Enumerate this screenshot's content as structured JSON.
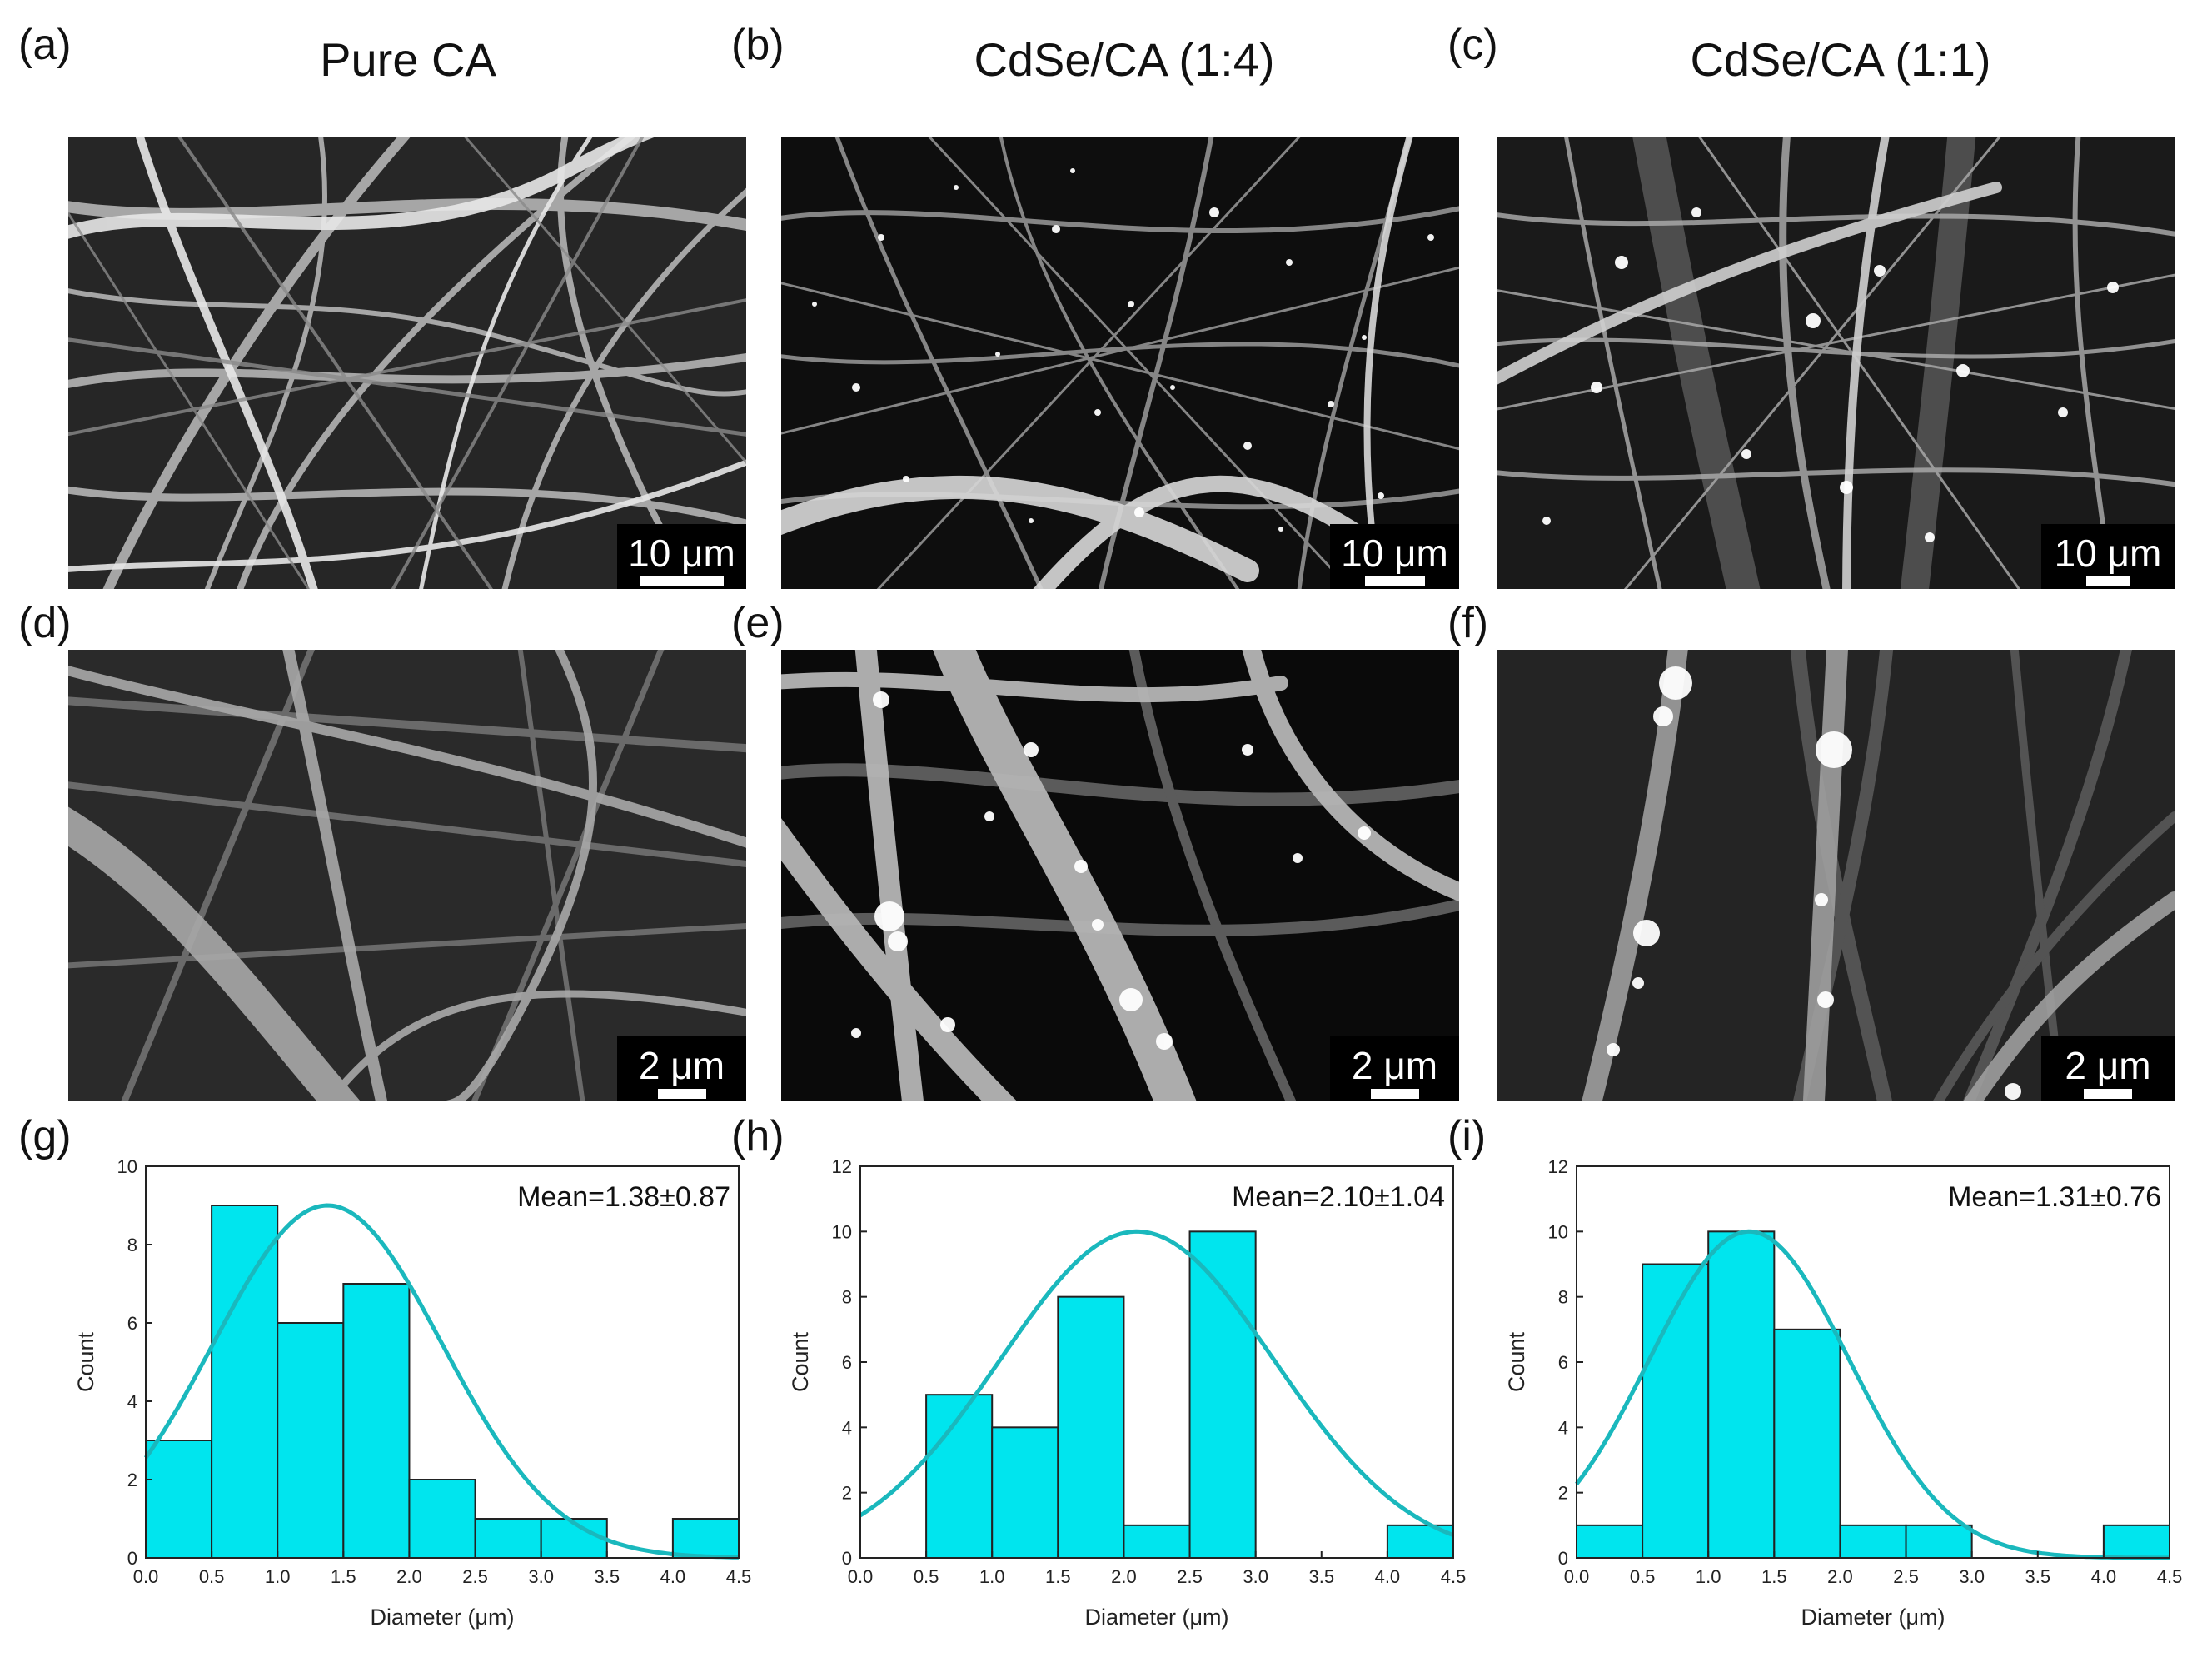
{
  "columns": [
    {
      "label": "(a)",
      "title": "Pure CA"
    },
    {
      "label": "(b)",
      "title": "CdSe/CA (1:4)"
    },
    {
      "label": "(c)",
      "title": "CdSe/CA (1:1)"
    }
  ],
  "row2_labels": [
    "(d)",
    "(e)",
    "(f)"
  ],
  "row3_labels": [
    "(g)",
    "(h)",
    "(i)"
  ],
  "micrographs": [
    {
      "panel": "a",
      "scale_text": "10 μm"
    },
    {
      "panel": "b",
      "scale_text": "10 μm"
    },
    {
      "panel": "c",
      "scale_text": "10 μm"
    },
    {
      "panel": "d",
      "scale_text": "2 μm"
    },
    {
      "panel": "e",
      "scale_text": "2 μm"
    },
    {
      "panel": "f",
      "scale_text": "2 μm"
    }
  ],
  "colors": {
    "bar_fill": "#00e5ee",
    "fit_curve": "#1ab8bd",
    "bar_edge": "#222222"
  },
  "chart_data": [
    {
      "type": "bar",
      "panel": "g",
      "bin_edges": [
        0.0,
        0.5,
        1.0,
        1.5,
        2.0,
        2.5,
        3.0,
        3.5,
        4.0,
        4.5
      ],
      "values": [
        3,
        9,
        6,
        7,
        2,
        1,
        1,
        0,
        1
      ],
      "fit": {
        "mean": 1.38,
        "sd": 0.87,
        "peak": 9.0
      },
      "annotation": "Mean=1.38±0.87",
      "xlabel": "Diameter (μm)",
      "ylabel": "Count",
      "xlim": [
        0,
        4.5
      ],
      "ylim": [
        0,
        10
      ],
      "xticks": [
        "0.0",
        "0.5",
        "1.0",
        "1.5",
        "2.0",
        "2.5",
        "3.0",
        "3.5",
        "4.0",
        "4.5"
      ],
      "yticks": [
        "0",
        "2",
        "4",
        "6",
        "8",
        "10"
      ]
    },
    {
      "type": "bar",
      "panel": "h",
      "bin_edges": [
        0.0,
        0.5,
        1.0,
        1.5,
        2.0,
        2.5,
        3.0,
        3.5,
        4.0,
        4.5
      ],
      "values": [
        0,
        5,
        4,
        8,
        1,
        10,
        0,
        0,
        1
      ],
      "fit": {
        "mean": 2.1,
        "sd": 1.04,
        "peak": 10.0
      },
      "annotation": "Mean=2.10±1.04",
      "xlabel": "Diameter (μm)",
      "ylabel": "Count",
      "xlim": [
        0,
        4.5
      ],
      "ylim": [
        0,
        12
      ],
      "xticks": [
        "0.0",
        "0.5",
        "1.0",
        "1.5",
        "2.0",
        "2.5",
        "3.0",
        "3.5",
        "4.0",
        "4.5"
      ],
      "yticks": [
        "0",
        "2",
        "4",
        "6",
        "8",
        "10",
        "12"
      ]
    },
    {
      "type": "bar",
      "panel": "i",
      "bin_edges": [
        0.0,
        0.5,
        1.0,
        1.5,
        2.0,
        2.5,
        3.0,
        3.5,
        4.0,
        4.5
      ],
      "values": [
        1,
        9,
        10,
        7,
        1,
        1,
        0,
        0,
        1
      ],
      "fit": {
        "mean": 1.31,
        "sd": 0.76,
        "peak": 10.0
      },
      "annotation": "Mean=1.31±0.76",
      "xlabel": "Diameter (μm)",
      "ylabel": "Count",
      "xlim": [
        0,
        4.5
      ],
      "ylim": [
        0,
        12
      ],
      "xticks": [
        "0.0",
        "0.5",
        "1.0",
        "1.5",
        "2.0",
        "2.5",
        "3.0",
        "3.5",
        "4.0",
        "4.5"
      ],
      "yticks": [
        "0",
        "2",
        "4",
        "6",
        "8",
        "10",
        "12"
      ]
    }
  ]
}
